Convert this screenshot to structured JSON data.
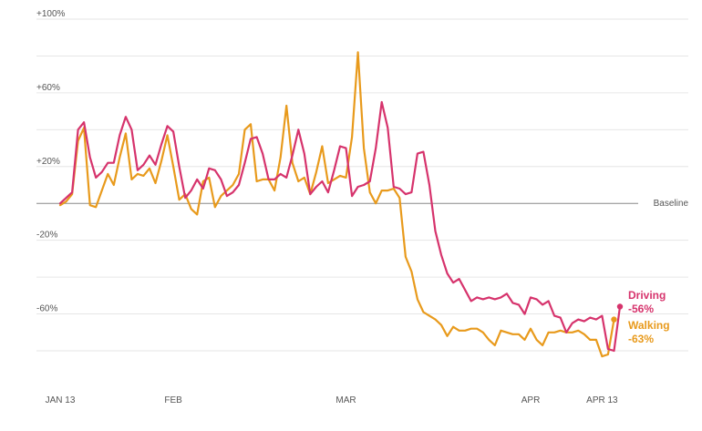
{
  "chart_data": {
    "type": "line",
    "title": "",
    "xlabel": "",
    "ylabel": "",
    "ylim": [
      -90,
      100
    ],
    "grid": true,
    "y_ticks": [
      {
        "value": 100,
        "label": "+100%"
      },
      {
        "value": 80,
        "label": ""
      },
      {
        "value": 60,
        "label": "+60%"
      },
      {
        "value": 40,
        "label": ""
      },
      {
        "value": 20,
        "label": "+20%"
      },
      {
        "value": -20,
        "label": "-20%"
      },
      {
        "value": -40,
        "label": ""
      },
      {
        "value": -60,
        "label": "-60%"
      },
      {
        "value": -80,
        "label": ""
      }
    ],
    "baseline": {
      "value": 0,
      "label": "Baseline"
    },
    "x_start": "2020-01-13",
    "x_ticks": [
      {
        "date": "2020-01-13",
        "label": "JAN 13"
      },
      {
        "date": "2020-02-01",
        "label": "FEB"
      },
      {
        "date": "2020-03-01",
        "label": "MAR"
      },
      {
        "date": "2020-04-01",
        "label": "APR"
      },
      {
        "date": "2020-04-13",
        "label": "APR 13"
      }
    ],
    "series": [
      {
        "name": "Driving",
        "end_label": "-56%",
        "color": "#d6336c",
        "values": [
          0,
          3,
          6,
          40,
          44,
          25,
          14,
          17,
          22,
          22,
          37,
          47,
          40,
          18,
          21,
          26,
          21,
          32,
          42,
          39,
          20,
          3,
          7,
          13,
          8,
          19,
          18,
          13,
          4,
          6,
          10,
          22,
          35,
          36,
          27,
          13,
          13,
          16,
          14,
          26,
          40,
          27,
          5,
          9,
          12,
          6,
          18,
          31,
          30,
          4,
          9,
          10,
          12,
          30,
          55,
          41,
          9,
          8,
          5,
          6,
          27,
          28,
          10,
          -15,
          -28,
          -38,
          -43,
          -41,
          -47,
          -53,
          -51,
          -52,
          -51,
          -52,
          -51,
          -49,
          -54,
          -55,
          -60,
          -51,
          -52,
          -55,
          -53,
          -61,
          -62,
          -70,
          -65,
          -63,
          -64,
          -62,
          -63,
          -61,
          -79,
          -80,
          -56
        ]
      },
      {
        "name": "Walking",
        "end_label": "-63%",
        "color": "#e89a1c",
        "values": [
          -1,
          1,
          5,
          34,
          41,
          -1,
          -2,
          7,
          16,
          10,
          25,
          38,
          13,
          16,
          15,
          19,
          11,
          23,
          37,
          20,
          2,
          5,
          -3,
          -6,
          12,
          14,
          -2,
          4,
          7,
          10,
          16,
          40,
          43,
          12,
          13,
          13,
          7,
          25,
          53,
          22,
          12,
          14,
          5,
          17,
          31,
          11,
          13,
          15,
          14,
          36,
          82,
          30,
          6,
          0,
          7,
          7,
          8,
          3,
          -29,
          -37,
          -52,
          -59,
          -61,
          -63,
          -66,
          -72,
          -67,
          -69,
          -69,
          -68,
          -68,
          -70,
          -74,
          -77,
          -69,
          -70,
          -71,
          -71,
          -74,
          -68,
          -74,
          -77,
          -70,
          -70,
          -69,
          -70,
          -70,
          -69,
          -71,
          -74,
          -74,
          -83,
          -82,
          -63
        ]
      }
    ]
  }
}
